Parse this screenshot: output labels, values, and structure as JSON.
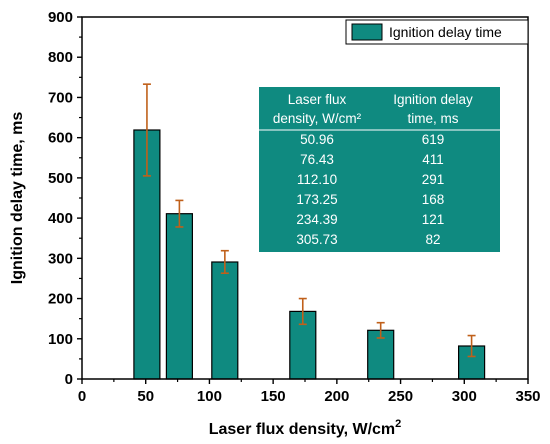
{
  "chart_data": {
    "type": "bar",
    "bar_color": "#0f8a80",
    "bar_edge_color": "#000000",
    "error_bar_color": "#c0601a",
    "table_bg_color": "#0f8a80",
    "x": [
      50.96,
      76.43,
      112.1,
      173.25,
      234.39,
      305.73
    ],
    "values": [
      619,
      411,
      291,
      168,
      121,
      82
    ],
    "errors_upper": [
      733,
      444,
      319,
      200,
      140,
      108
    ],
    "errors_lower": [
      505,
      378,
      263,
      136,
      102,
      56
    ],
    "xlim": [
      0,
      350
    ],
    "ylim": [
      0,
      900
    ],
    "xticks": [
      "0",
      "50",
      "100",
      "150",
      "200",
      "250",
      "300",
      "350"
    ],
    "yticks": [
      "0",
      "100",
      "200",
      "300",
      "400",
      "500",
      "600",
      "700",
      "800",
      "900"
    ],
    "xlabel": "Laser flux density, W/cm",
    "xlabel_sup": "2",
    "ylabel": "Ignition delay time, ms",
    "legend_label": "Ignition delay time",
    "legend_position": "top-right",
    "table": {
      "header_col1_line1": "Laser flux",
      "header_col1_line2": "density, W/cm²",
      "header_col2_line1": "Ignition delay",
      "header_col2_line2": "time, ms",
      "rows": [
        [
          "50.96",
          "619"
        ],
        [
          "76.43",
          "411"
        ],
        [
          "112.10",
          "291"
        ],
        [
          "173.25",
          "168"
        ],
        [
          "234.39",
          "121"
        ],
        [
          "305.73",
          "82"
        ]
      ]
    }
  }
}
